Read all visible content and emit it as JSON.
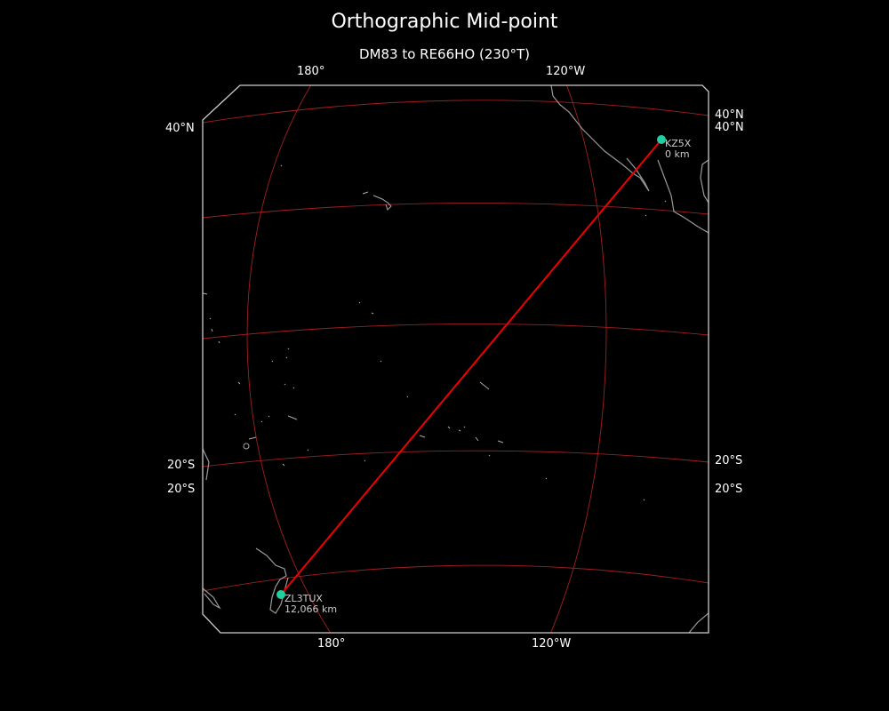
{
  "title": "Orthographic Mid-point",
  "subtitle": "DM83 to RE66HO (230°T)",
  "ticks": {
    "top": [
      "180°",
      "120°W"
    ],
    "bottom": [
      "180°",
      "120°W"
    ],
    "left": [
      "40°N",
      "20°S",
      "20°S"
    ],
    "right": [
      "40°N",
      "40°N",
      "20°S",
      "20°S"
    ]
  },
  "points": [
    {
      "call": "KZ5X",
      "distance": "0 km",
      "color": "#20d0a0"
    },
    {
      "call": "ZL3TUX",
      "distance": "12,066 km",
      "color": "#20d0a0"
    }
  ],
  "colors": {
    "path": "#ee0000",
    "graticule": "#b22222",
    "coastline": "#999999",
    "frame": "#cccccc"
  }
}
